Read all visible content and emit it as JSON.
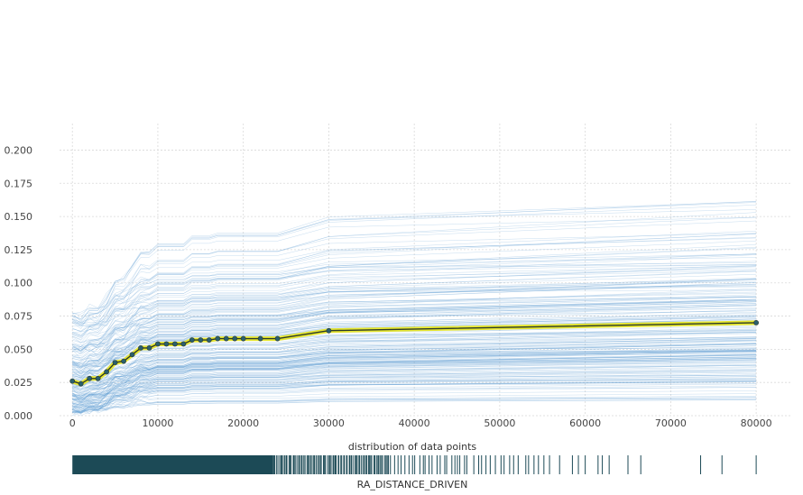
{
  "chart_data": {
    "type": "line",
    "xlabel": "RA_DISTANCE_DRIVEN",
    "ylabel": "",
    "dist_label": "distribution of data points",
    "xlim": [
      -1500,
      84000
    ],
    "ylim": [
      0,
      0.22
    ],
    "xticks": [
      0,
      10000,
      20000,
      30000,
      40000,
      50000,
      60000,
      70000,
      80000
    ],
    "xtick_labels": [
      "0",
      "10000",
      "20000",
      "30000",
      "40000",
      "50000",
      "60000",
      "70000",
      "80000"
    ],
    "yticks": [
      0,
      0.025,
      0.05,
      0.075,
      0.1,
      0.125,
      0.15,
      0.175,
      0.2
    ],
    "ytick_labels": [
      "0.000",
      "0.025",
      "0.050",
      "0.075",
      "0.100",
      "0.125",
      "0.150",
      "0.175",
      "0.200"
    ],
    "grid": true,
    "series": [
      {
        "x": [
          0,
          1000,
          2000,
          3000,
          4000,
          5000,
          6000,
          7000,
          8000,
          9000,
          10000,
          11000,
          12000,
          13000,
          14000,
          15000,
          16000,
          17000,
          18000,
          19000,
          20000,
          22000,
          24000,
          30000,
          80000
        ],
        "values": [
          0.026,
          0.024,
          0.028,
          0.028,
          0.033,
          0.04,
          0.041,
          0.046,
          0.051,
          0.051,
          0.054,
          0.054,
          0.054,
          0.054,
          0.057,
          0.057,
          0.057,
          0.058,
          0.058,
          0.058,
          0.058,
          0.058,
          0.058,
          0.064,
          0.07
        ]
      }
    ],
    "colors": {
      "ice_lines": "#5b9bd1",
      "pdp_line": "#2b3a2b",
      "pdp_highlight": "#e6e630",
      "pdp_points": "#2a5f6e",
      "distribution": "#1c4a56",
      "grid": "#d9d9d9"
    }
  }
}
